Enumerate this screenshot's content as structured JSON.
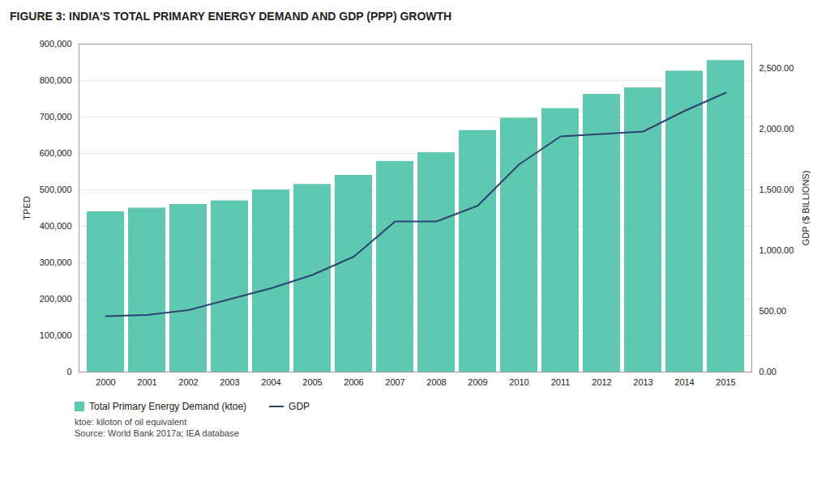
{
  "chart_data": {
    "type": "bar",
    "title": "FIGURE 3: INDIA'S TOTAL PRIMARY ENERGY DEMAND AND GDP (PPP) GROWTH",
    "categories": [
      2000,
      2001,
      2002,
      2003,
      2004,
      2005,
      2006,
      2007,
      2008,
      2009,
      2010,
      2011,
      2012,
      2013,
      2014,
      2015
    ],
    "series": [
      {
        "name": "Total Primary Energy Demand (ktoe)",
        "type": "bar",
        "color": "#5ec8b0",
        "values": [
          440000,
          450000,
          460000,
          470000,
          500000,
          515000,
          540000,
          578000,
          602000,
          663000,
          697000,
          723000,
          762000,
          780000,
          826000,
          855000
        ]
      },
      {
        "name": "GDP",
        "type": "line",
        "color": "#2b4472",
        "axis": "y2",
        "values": [
          460,
          470,
          510,
          600,
          690,
          800,
          950,
          1240,
          1240,
          1370,
          1710,
          1940,
          1960,
          1980,
          2150,
          2300
        ]
      }
    ],
    "ylabel": "TPED",
    "y2label": "GDP ($ BILLIONS)",
    "ylim": [
      0,
      900000
    ],
    "yticks": [
      0,
      {
        "value": 100000,
        "label": "100,000"
      },
      {
        "value": 200000,
        "label": "200,000"
      },
      {
        "value": 300000,
        "label": "300,000"
      },
      {
        "value": 400000,
        "label": "400,000"
      },
      {
        "value": 500000,
        "label": "500,000"
      },
      {
        "value": 600000,
        "label": "600,000"
      },
      {
        "value": 700000,
        "label": "700,000"
      },
      {
        "value": 800000,
        "label": "800,000"
      },
      {
        "value": 900000,
        "label": "900,000"
      }
    ],
    "y2lim": [
      0,
      2700
    ],
    "y2ticks": [
      {
        "value": 0,
        "label": "0.00"
      },
      {
        "value": 500,
        "label": "500.00"
      },
      {
        "value": 1000,
        "label": "1,000.00"
      },
      {
        "value": 1500,
        "label": "1,500.00"
      },
      {
        "value": 2000,
        "label": "2,000.00"
      },
      {
        "value": 2500,
        "label": "2,500.00"
      }
    ],
    "grid": true,
    "legend": "bottom",
    "annotations": [
      "ktoe: kiloton of oil equivalent",
      "Source: World Bank 2017a; IEA database"
    ]
  }
}
